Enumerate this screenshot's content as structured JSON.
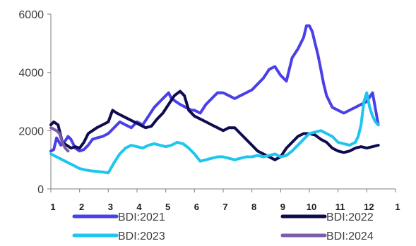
{
  "chart_data": {
    "type": "line",
    "title": "",
    "xlabel": "",
    "ylabel": "",
    "ylim": [
      0,
      6000
    ],
    "xlim": [
      1,
      13
    ],
    "y_ticks": [
      0,
      2000,
      4000,
      6000
    ],
    "x_tick_labels": [
      "1",
      "2",
      "3",
      "4",
      "5",
      "6",
      "7",
      "8",
      "9",
      "10",
      "11",
      "12",
      "1"
    ],
    "grid": false,
    "legend_position": "bottom",
    "series": [
      {
        "name": "BDI:2021",
        "color": "#4A3FE8",
        "x": [
          1.0,
          1.1,
          1.2,
          1.35,
          1.5,
          1.6,
          1.7,
          1.85,
          2.0,
          2.15,
          2.3,
          2.45,
          2.6,
          2.8,
          3.0,
          3.2,
          3.4,
          3.6,
          3.8,
          4.0,
          4.2,
          4.4,
          4.6,
          4.8,
          5.0,
          5.1,
          5.2,
          5.35,
          5.5,
          5.7,
          5.9,
          6.0,
          6.2,
          6.4,
          6.6,
          6.8,
          7.0,
          7.2,
          7.4,
          7.6,
          7.8,
          8.0,
          8.2,
          8.4,
          8.6,
          8.8,
          9.0,
          9.2,
          9.4,
          9.6,
          9.8,
          9.9,
          10.0,
          10.1,
          10.2,
          10.3,
          10.4,
          10.5,
          10.6,
          10.8,
          11.0,
          11.2,
          11.4,
          11.6,
          11.8,
          12.0,
          12.2,
          12.4
        ],
        "y": [
          1300,
          1350,
          1750,
          1500,
          1650,
          1800,
          1700,
          1400,
          1300,
          1350,
          1500,
          1700,
          1750,
          1800,
          1900,
          2100,
          2300,
          2200,
          2100,
          2300,
          2200,
          2500,
          2800,
          3000,
          3200,
          3300,
          3100,
          3000,
          2900,
          2800,
          2700,
          2700,
          2600,
          2900,
          3100,
          3300,
          3300,
          3200,
          3100,
          3200,
          3300,
          3400,
          3600,
          3800,
          4100,
          4200,
          3900,
          3700,
          4500,
          4800,
          5200,
          5600,
          5600,
          5400,
          5000,
          4600,
          4100,
          3600,
          3200,
          2800,
          2700,
          2600,
          2700,
          2800,
          2900,
          3000,
          3300,
          2200
        ]
      },
      {
        "name": "BDI:2022",
        "color": "#0E0C4F",
        "x": [
          1.0,
          1.1,
          1.25,
          1.4,
          1.55,
          1.7,
          1.85,
          2.0,
          2.15,
          2.3,
          2.45,
          2.6,
          2.8,
          3.0,
          3.15,
          3.3,
          3.5,
          3.7,
          3.9,
          4.1,
          4.3,
          4.5,
          4.7,
          4.9,
          5.1,
          5.3,
          5.5,
          5.65,
          5.8,
          6.0,
          6.2,
          6.4,
          6.6,
          6.8,
          7.0,
          7.2,
          7.4,
          7.6,
          7.8,
          8.0,
          8.2,
          8.4,
          8.6,
          8.8,
          9.0,
          9.2,
          9.4,
          9.6,
          9.8,
          10.0,
          10.2,
          10.4,
          10.6,
          10.8,
          11.0,
          11.2,
          11.4,
          11.6,
          11.8,
          12.0,
          12.2,
          12.4
        ],
        "y": [
          2200,
          2300,
          2200,
          1600,
          1500,
          1400,
          1450,
          1400,
          1600,
          1900,
          2000,
          2100,
          2200,
          2300,
          2700,
          2600,
          2500,
          2400,
          2300,
          2200,
          2100,
          2150,
          2400,
          2600,
          2900,
          3200,
          3350,
          3200,
          2700,
          2500,
          2400,
          2300,
          2200,
          2100,
          2000,
          2100,
          2100,
          1900,
          1700,
          1500,
          1300,
          1200,
          1100,
          1000,
          1100,
          1400,
          1600,
          1800,
          1900,
          1900,
          1850,
          1700,
          1600,
          1400,
          1300,
          1250,
          1300,
          1400,
          1450,
          1400,
          1450,
          1500
        ]
      },
      {
        "name": "BDI:2023",
        "color": "#1DC6EE",
        "x": [
          1.0,
          1.2,
          1.4,
          1.6,
          1.8,
          2.0,
          2.2,
          2.4,
          2.6,
          2.8,
          3.0,
          3.2,
          3.4,
          3.6,
          3.8,
          4.0,
          4.2,
          4.4,
          4.6,
          4.8,
          5.0,
          5.2,
          5.4,
          5.6,
          5.8,
          6.0,
          6.2,
          6.4,
          6.6,
          6.8,
          7.0,
          7.2,
          7.4,
          7.6,
          7.8,
          8.0,
          8.2,
          8.4,
          8.6,
          8.8,
          9.0,
          9.2,
          9.4,
          9.6,
          9.8,
          10.0,
          10.2,
          10.4,
          10.6,
          10.8,
          11.0,
          11.2,
          11.4,
          11.6,
          11.7,
          11.8,
          11.9,
          12.0,
          12.1,
          12.2,
          12.3,
          12.4
        ],
        "y": [
          1200,
          1100,
          1000,
          900,
          800,
          700,
          650,
          620,
          600,
          580,
          550,
          900,
          1200,
          1400,
          1500,
          1450,
          1400,
          1500,
          1550,
          1500,
          1450,
          1500,
          1600,
          1550,
          1400,
          1200,
          950,
          1000,
          1050,
          1100,
          1100,
          1050,
          1000,
          1050,
          1100,
          1100,
          1150,
          1100,
          1150,
          1200,
          1100,
          1150,
          1300,
          1500,
          1700,
          1900,
          1950,
          2000,
          1900,
          1800,
          1600,
          1550,
          1500,
          1600,
          1800,
          2200,
          3000,
          3300,
          2800,
          2500,
          2300,
          2200
        ]
      },
      {
        "name": "BDI:2024",
        "color": "#7B5EA7",
        "x": [
          1.0,
          1.1,
          1.2,
          1.3,
          1.4,
          1.5,
          1.6
        ],
        "y": [
          2100,
          2050,
          2000,
          1900,
          1600,
          1400,
          1300
        ]
      }
    ]
  }
}
